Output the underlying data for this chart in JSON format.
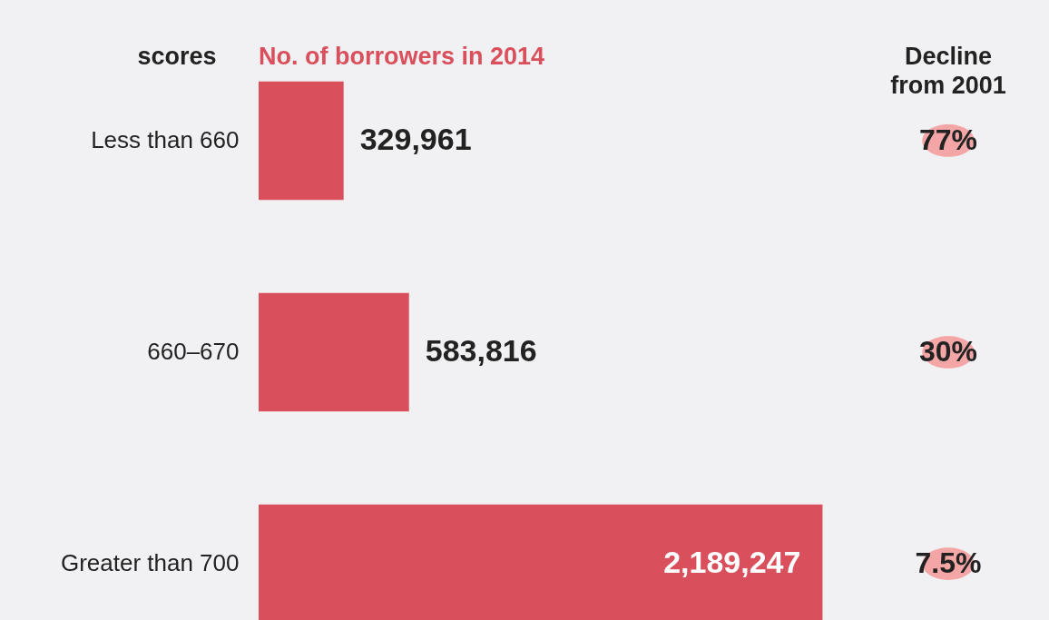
{
  "chart_data": {
    "type": "bar",
    "orientation": "horizontal",
    "title": "No. of borrowers in 2014",
    "ylabel": "scores",
    "categories": [
      "Less than 660",
      "660–670",
      "Greater than 700"
    ],
    "values": [
      329961,
      583816,
      2189247
    ],
    "color": "#d94f5c",
    "value_labels": [
      "329,961",
      "583,816",
      "2,189,247"
    ],
    "annotations": [
      "Decline from 2001",
      "77%",
      "30%",
      "7.5%"
    ]
  }
}
